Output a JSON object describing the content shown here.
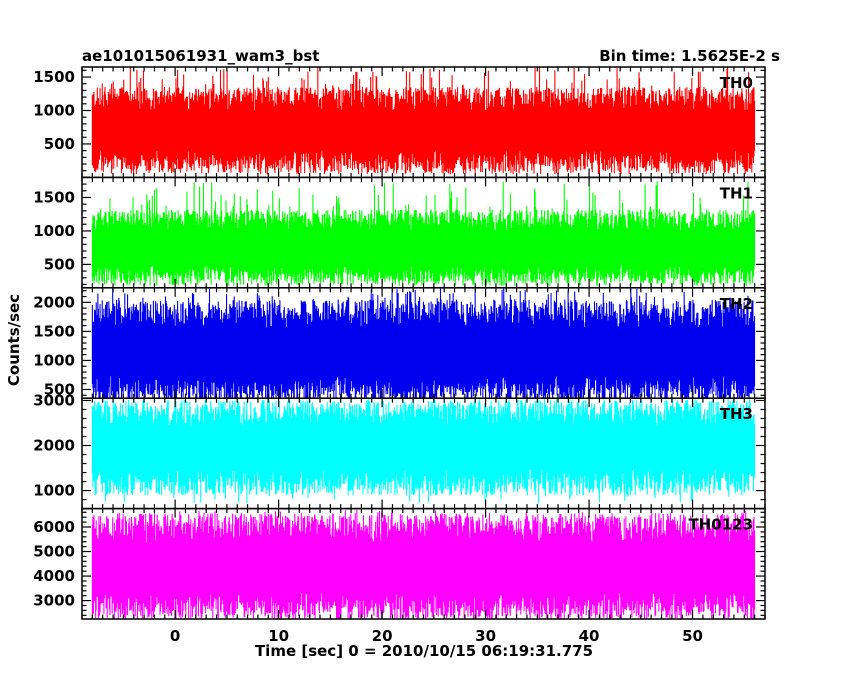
{
  "header": {
    "left": "ae101015061931_wam3_bst",
    "right": "Bin time: 1.5625E-2 s"
  },
  "chart_data": {
    "type": "line",
    "title": "ae101015061931_wam3_bst",
    "bin_time_s": 0.015625,
    "xlabel": "Time [sec] 0 = 2010/10/15 06:19:31.775",
    "ylabel": "Counts/sec",
    "xlim": [
      -9,
      57
    ],
    "data_x_range": [
      -8,
      56
    ],
    "x_ticks": [
      0,
      10,
      20,
      30,
      40,
      50
    ],
    "panels": [
      {
        "name": "TH0",
        "color": "#ff0000",
        "ylim": [
          0,
          1650
        ],
        "y_ticks": [
          500,
          1000,
          1500
        ],
        "series_summary": {
          "min": 120,
          "typical_low": 300,
          "typical_high": 1100,
          "max": 1650,
          "mean": 700
        }
      },
      {
        "name": "TH1",
        "color": "#00ff00",
        "ylim": [
          150,
          1800
        ],
        "y_ticks": [
          500,
          1000,
          1500
        ],
        "series_summary": {
          "min": 250,
          "typical_low": 400,
          "typical_high": 1100,
          "max": 1750,
          "mean": 750
        }
      },
      {
        "name": "TH2",
        "color": "#0000ee",
        "ylim": [
          350,
          2250
        ],
        "y_ticks": [
          500,
          1000,
          1500,
          2000
        ],
        "series_summary": {
          "min": 420,
          "typical_low": 600,
          "typical_high": 1700,
          "max": 2250,
          "mean": 1150
        }
      },
      {
        "name": "TH3",
        "color": "#00ffff",
        "ylim": [
          600,
          3050
        ],
        "y_ticks": [
          1000,
          2000,
          3000
        ],
        "series_summary": {
          "min": 700,
          "typical_low": 1300,
          "typical_high": 2600,
          "max": 3050,
          "mean": 1950
        }
      },
      {
        "name": "TH0123",
        "color": "#ff00ff",
        "ylim": [
          2250,
          6750
        ],
        "y_ticks": [
          3000,
          4000,
          5000,
          6000
        ],
        "series_summary": {
          "min": 2300,
          "typical_low": 3000,
          "typical_high": 5700,
          "max": 6700,
          "mean": 4300
        }
      }
    ]
  }
}
